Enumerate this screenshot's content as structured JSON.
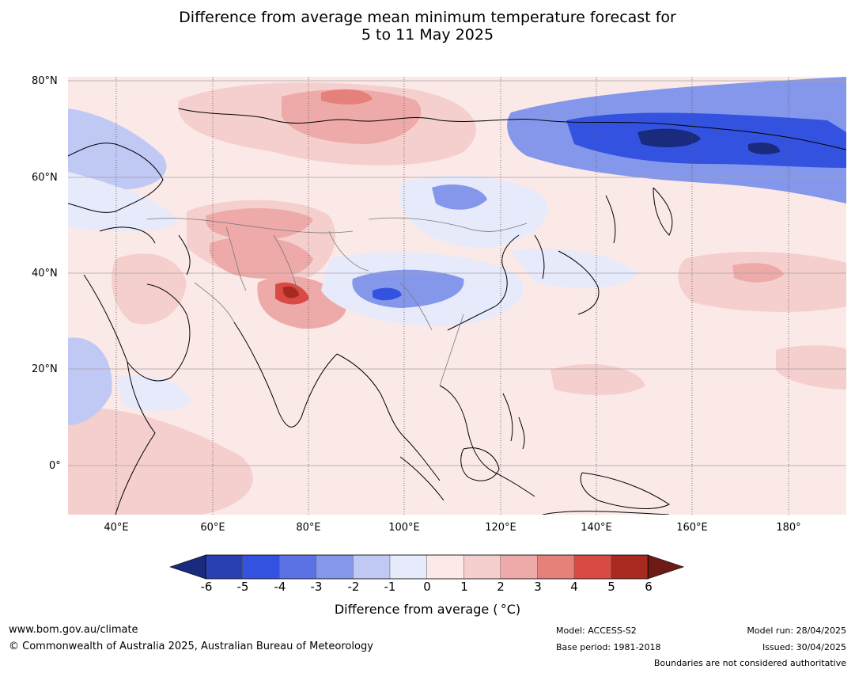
{
  "title": {
    "line1": "Difference from average mean minimum temperature forecast for",
    "line2": "5 to 11 May 2025"
  },
  "map": {
    "lat_labels": [
      "80°N",
      "60°N",
      "40°N",
      "20°N",
      "0°"
    ],
    "lon_labels": [
      "40°E",
      "60°E",
      "80°E",
      "100°E",
      "120°E",
      "140°E",
      "160°E",
      "180°"
    ],
    "colors": {
      "background": "#fbe9e8",
      "land_border": "#000000",
      "country_border": "#7a7a7a"
    }
  },
  "colorbar": {
    "ticks": [
      "-6",
      "-5",
      "-4",
      "-3",
      "-2",
      "-1",
      "0",
      "1",
      "2",
      "3",
      "4",
      "5",
      "6"
    ],
    "colors": [
      "#1a2a7c",
      "#2a3fb0",
      "#3352e0",
      "#5b72e4",
      "#8497ea",
      "#c0c8f4",
      "#e7eafb",
      "#fde9e8",
      "#f4cfcd",
      "#eeaaa8",
      "#e5807b",
      "#d84a43",
      "#a8291f",
      "#6e1b17"
    ],
    "title": "Difference from average ( °C)"
  },
  "footer": {
    "url": "www.bom.gov.au/climate",
    "copyright": "© Commonwealth of Australia 2025, Australian Bureau of Meteorology",
    "model": "Model: ACCESS-S2",
    "base_period": "Base period: 1981-2018",
    "model_run": "Model run: 28/04/2025",
    "issued": "Issued: 30/04/2025",
    "disclaimer": "Boundaries are not considered authoritative"
  }
}
